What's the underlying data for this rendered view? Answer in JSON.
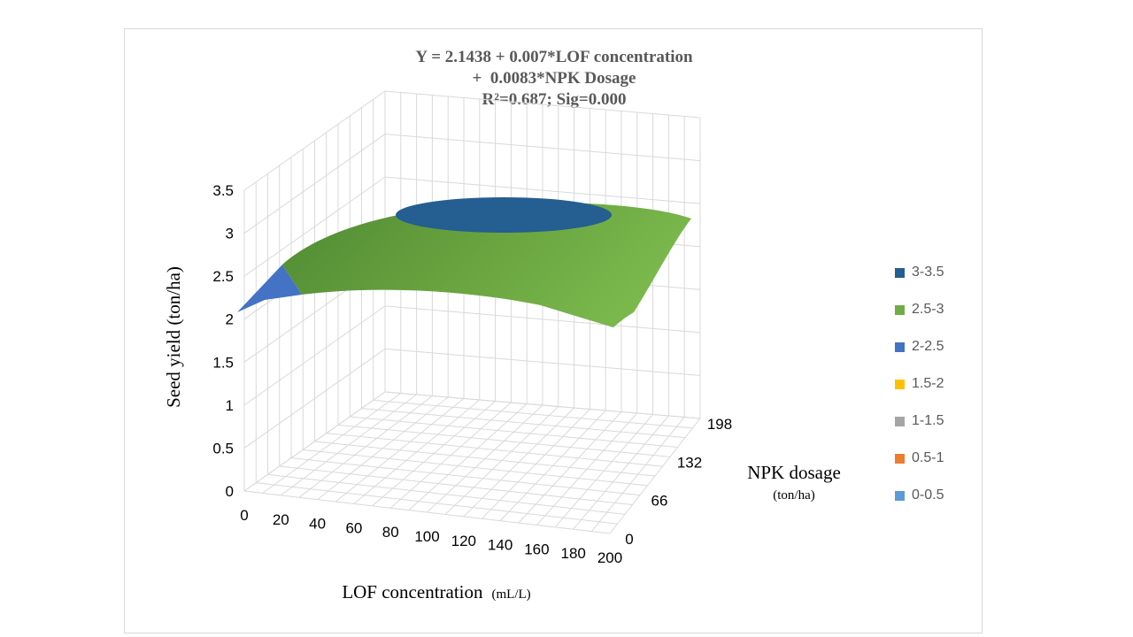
{
  "chart_data": {
    "type": "surface",
    "title": [
      "Y = 2.1438 + 0.007*LOF concentration",
      "+  0.0083*NPK Dosage",
      "R²=0.687; Sig=0.000"
    ],
    "xlabel": "LOF concentration",
    "xlabel_unit": "(mL/L)",
    "ylabel": "Seed yield (ton/ha)",
    "depth_label": "NPK dosage",
    "depth_label_unit": "(ton/ha)",
    "x_ticks": [
      "0",
      "20",
      "40",
      "60",
      "80",
      "100",
      "120",
      "140",
      "160",
      "180",
      "200"
    ],
    "depth_ticks": [
      "0",
      "66",
      "132",
      "198"
    ],
    "z_ticks": [
      "0",
      "0.5",
      "1",
      "1.5",
      "2",
      "2.5",
      "3",
      "3.5"
    ],
    "zlim": [
      0,
      3.5
    ],
    "grid": true,
    "legend_position": "right",
    "legend": [
      {
        "label": "3-3.5",
        "color": "#255e91"
      },
      {
        "label": "2.5-3",
        "color": "#70ad47"
      },
      {
        "label": "2-2.5",
        "color": "#4472c4"
      },
      {
        "label": "1.5-2",
        "color": "#ffc000"
      },
      {
        "label": "1-1.5",
        "color": "#a5a5a5"
      },
      {
        "label": "0.5-1",
        "color": "#ed7d31"
      },
      {
        "label": "0-0.5",
        "color": "#5b9bd5"
      }
    ],
    "surface_corner_values": {
      "x0_npk0": 2.15,
      "x200_npk0": 2.2,
      "x0_npk198": 2.45,
      "x200_npk198": 2.95
    },
    "surface_peak": {
      "x": 100,
      "npk": 132,
      "value": 3.1
    }
  }
}
